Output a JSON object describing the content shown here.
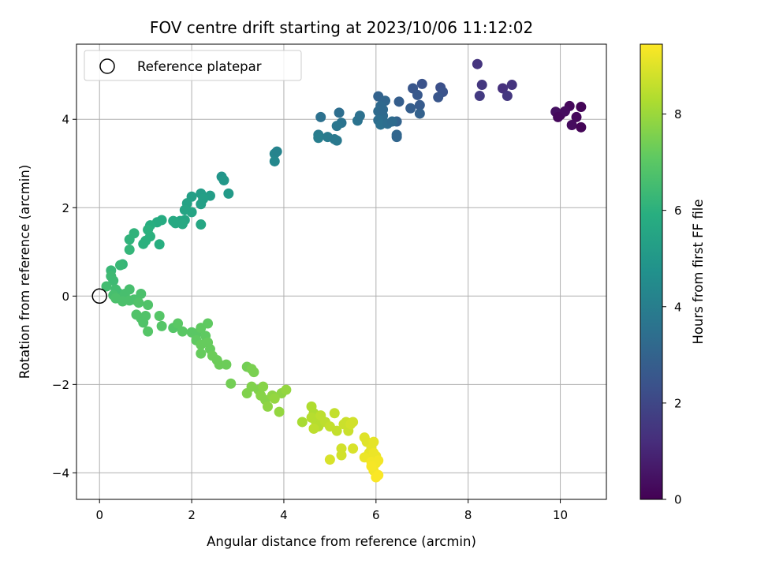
{
  "chart_data": {
    "type": "scatter",
    "title": "FOV centre drift starting at 2023/10/06 11:12:02",
    "xlabel": "Angular distance from reference (arcmin)",
    "ylabel": "Rotation from reference (arcmin)",
    "xlim": [
      -0.5,
      11.0
    ],
    "ylim": [
      -4.6,
      5.7
    ],
    "xticks": [
      0,
      2,
      4,
      6,
      8,
      10
    ],
    "yticks": [
      -4,
      -2,
      0,
      2,
      4
    ],
    "grid": true,
    "legend": {
      "placement": "top-left",
      "entries": [
        "Reference platepar"
      ]
    },
    "reference_point": {
      "x": 0,
      "y": 0,
      "marker": "open-circle",
      "label": "Reference platepar"
    },
    "colormap": "viridis",
    "colorbar": {
      "label": "Hours from first FF file",
      "range": [
        0,
        9.45
      ],
      "ticks": [
        0,
        2,
        4,
        6,
        8
      ]
    },
    "points": [
      {
        "x": 10.0,
        "y": 4.1,
        "c": 0.1
      },
      {
        "x": 10.2,
        "y": 4.3,
        "c": 0.2
      },
      {
        "x": 10.45,
        "y": 4.28,
        "c": 0.1
      },
      {
        "x": 10.35,
        "y": 4.05,
        "c": 0.2
      },
      {
        "x": 10.25,
        "y": 3.87,
        "c": 0.3
      },
      {
        "x": 10.45,
        "y": 3.82,
        "c": 0.1
      },
      {
        "x": 9.9,
        "y": 4.17,
        "c": 0.4
      },
      {
        "x": 10.1,
        "y": 4.18,
        "c": 0.3
      },
      {
        "x": 9.95,
        "y": 4.05,
        "c": 0.2
      },
      {
        "x": 8.2,
        "y": 5.25,
        "c": 1.4
      },
      {
        "x": 8.3,
        "y": 4.78,
        "c": 1.5
      },
      {
        "x": 8.25,
        "y": 4.53,
        "c": 1.6
      },
      {
        "x": 8.75,
        "y": 4.7,
        "c": 1.3
      },
      {
        "x": 8.95,
        "y": 4.78,
        "c": 1.4
      },
      {
        "x": 8.85,
        "y": 4.53,
        "c": 1.5
      },
      {
        "x": 6.8,
        "y": 4.7,
        "c": 2.5
      },
      {
        "x": 7.0,
        "y": 4.8,
        "c": 2.4
      },
      {
        "x": 6.9,
        "y": 4.55,
        "c": 2.6
      },
      {
        "x": 6.95,
        "y": 4.32,
        "c": 2.7
      },
      {
        "x": 6.75,
        "y": 4.25,
        "c": 2.8
      },
      {
        "x": 6.95,
        "y": 4.13,
        "c": 2.9
      },
      {
        "x": 7.4,
        "y": 4.72,
        "c": 2.3
      },
      {
        "x": 7.45,
        "y": 4.62,
        "c": 2.4
      },
      {
        "x": 7.35,
        "y": 4.5,
        "c": 2.5
      },
      {
        "x": 6.5,
        "y": 4.4,
        "c": 2.8
      },
      {
        "x": 6.45,
        "y": 3.95,
        "c": 3.0
      },
      {
        "x": 6.45,
        "y": 3.6,
        "c": 3.1
      },
      {
        "x": 6.45,
        "y": 3.65,
        "c": 3.1
      },
      {
        "x": 6.05,
        "y": 4.52,
        "c": 3.0
      },
      {
        "x": 6.2,
        "y": 4.42,
        "c": 3.1
      },
      {
        "x": 6.1,
        "y": 4.3,
        "c": 3.2
      },
      {
        "x": 6.05,
        "y": 4.18,
        "c": 3.3
      },
      {
        "x": 6.15,
        "y": 4.08,
        "c": 3.3
      },
      {
        "x": 6.05,
        "y": 3.98,
        "c": 3.4
      },
      {
        "x": 6.1,
        "y": 3.88,
        "c": 3.5
      },
      {
        "x": 6.25,
        "y": 3.9,
        "c": 3.4
      },
      {
        "x": 6.35,
        "y": 3.95,
        "c": 3.3
      },
      {
        "x": 6.15,
        "y": 4.22,
        "c": 3.2
      },
      {
        "x": 4.8,
        "y": 4.05,
        "c": 3.5
      },
      {
        "x": 5.2,
        "y": 4.15,
        "c": 3.4
      },
      {
        "x": 5.25,
        "y": 3.92,
        "c": 3.6
      },
      {
        "x": 5.15,
        "y": 3.85,
        "c": 3.7
      },
      {
        "x": 5.6,
        "y": 3.97,
        "c": 3.6
      },
      {
        "x": 5.65,
        "y": 4.08,
        "c": 3.5
      },
      {
        "x": 4.75,
        "y": 3.65,
        "c": 3.9
      },
      {
        "x": 4.75,
        "y": 3.58,
        "c": 4.0
      },
      {
        "x": 4.95,
        "y": 3.6,
        "c": 3.9
      },
      {
        "x": 5.1,
        "y": 3.55,
        "c": 3.8
      },
      {
        "x": 5.15,
        "y": 3.52,
        "c": 3.8
      },
      {
        "x": 3.8,
        "y": 3.22,
        "c": 4.3
      },
      {
        "x": 3.85,
        "y": 3.27,
        "c": 4.2
      },
      {
        "x": 3.8,
        "y": 3.05,
        "c": 4.4
      },
      {
        "x": 2.65,
        "y": 2.7,
        "c": 4.9
      },
      {
        "x": 2.7,
        "y": 2.62,
        "c": 5.0
      },
      {
        "x": 2.8,
        "y": 2.32,
        "c": 5.1
      },
      {
        "x": 2.4,
        "y": 2.27,
        "c": 5.2
      },
      {
        "x": 2.2,
        "y": 2.32,
        "c": 5.2
      },
      {
        "x": 2.25,
        "y": 2.2,
        "c": 5.3
      },
      {
        "x": 2.2,
        "y": 2.08,
        "c": 5.3
      },
      {
        "x": 2.0,
        "y": 2.25,
        "c": 5.3
      },
      {
        "x": 1.9,
        "y": 2.1,
        "c": 5.4
      },
      {
        "x": 1.85,
        "y": 1.95,
        "c": 5.5
      },
      {
        "x": 2.0,
        "y": 1.9,
        "c": 5.5
      },
      {
        "x": 1.75,
        "y": 1.7,
        "c": 5.6
      },
      {
        "x": 1.85,
        "y": 1.72,
        "c": 5.6
      },
      {
        "x": 1.65,
        "y": 1.65,
        "c": 5.7
      },
      {
        "x": 1.8,
        "y": 1.63,
        "c": 5.7
      },
      {
        "x": 2.2,
        "y": 1.62,
        "c": 5.6
      },
      {
        "x": 1.6,
        "y": 1.7,
        "c": 5.7
      },
      {
        "x": 1.35,
        "y": 1.72,
        "c": 5.8
      },
      {
        "x": 1.25,
        "y": 1.67,
        "c": 5.8
      },
      {
        "x": 1.3,
        "y": 1.17,
        "c": 5.9
      },
      {
        "x": 1.1,
        "y": 1.6,
        "c": 5.9
      },
      {
        "x": 1.05,
        "y": 1.5,
        "c": 6.0
      },
      {
        "x": 1.1,
        "y": 1.35,
        "c": 6.0
      },
      {
        "x": 0.95,
        "y": 1.18,
        "c": 6.0
      },
      {
        "x": 1.0,
        "y": 1.25,
        "c": 6.0
      },
      {
        "x": 0.75,
        "y": 1.42,
        "c": 6.1
      },
      {
        "x": 0.65,
        "y": 1.28,
        "c": 6.1
      },
      {
        "x": 0.65,
        "y": 1.05,
        "c": 6.2
      },
      {
        "x": 0.5,
        "y": 0.72,
        "c": 6.2
      },
      {
        "x": 0.45,
        "y": 0.7,
        "c": 6.3
      },
      {
        "x": 0.25,
        "y": 0.58,
        "c": 6.3
      },
      {
        "x": 0.25,
        "y": 0.45,
        "c": 6.4
      },
      {
        "x": 0.3,
        "y": 0.35,
        "c": 6.4
      },
      {
        "x": 0.15,
        "y": 0.22,
        "c": 6.5
      },
      {
        "x": 0.35,
        "y": 0.15,
        "c": 6.5
      },
      {
        "x": 0.4,
        "y": 0.08,
        "c": 6.5
      },
      {
        "x": 0.3,
        "y": 0.02,
        "c": 6.6
      },
      {
        "x": 0.45,
        "y": -0.05,
        "c": 6.6
      },
      {
        "x": 0.55,
        "y": 0.05,
        "c": 6.6
      },
      {
        "x": 0.65,
        "y": 0.15,
        "c": 6.6
      },
      {
        "x": 0.65,
        "y": -0.1,
        "c": 6.7
      },
      {
        "x": 0.5,
        "y": -0.12,
        "c": 6.7
      },
      {
        "x": 0.35,
        "y": -0.05,
        "c": 6.7
      },
      {
        "x": 0.75,
        "y": -0.08,
        "c": 6.7
      },
      {
        "x": 0.9,
        "y": 0.05,
        "c": 6.7
      },
      {
        "x": 0.85,
        "y": -0.15,
        "c": 6.8
      },
      {
        "x": 1.05,
        "y": -0.2,
        "c": 6.8
      },
      {
        "x": 0.8,
        "y": -0.42,
        "c": 6.8
      },
      {
        "x": 0.9,
        "y": -0.5,
        "c": 6.8
      },
      {
        "x": 1.0,
        "y": -0.45,
        "c": 6.8
      },
      {
        "x": 0.95,
        "y": -0.6,
        "c": 6.8
      },
      {
        "x": 1.05,
        "y": -0.8,
        "c": 6.9
      },
      {
        "x": 1.3,
        "y": -0.45,
        "c": 6.9
      },
      {
        "x": 1.35,
        "y": -0.68,
        "c": 6.9
      },
      {
        "x": 1.6,
        "y": -0.72,
        "c": 6.9
      },
      {
        "x": 1.7,
        "y": -0.62,
        "c": 7.0
      },
      {
        "x": 1.8,
        "y": -0.8,
        "c": 7.0
      },
      {
        "x": 2.0,
        "y": -0.82,
        "c": 7.0
      },
      {
        "x": 2.1,
        "y": -0.85,
        "c": 7.0
      },
      {
        "x": 2.2,
        "y": -0.72,
        "c": 7.1
      },
      {
        "x": 2.35,
        "y": -0.62,
        "c": 7.1
      },
      {
        "x": 2.3,
        "y": -0.9,
        "c": 7.1
      },
      {
        "x": 2.1,
        "y": -1.0,
        "c": 7.1
      },
      {
        "x": 2.2,
        "y": -1.1,
        "c": 7.2
      },
      {
        "x": 2.35,
        "y": -1.05,
        "c": 7.2
      },
      {
        "x": 2.2,
        "y": -1.3,
        "c": 7.2
      },
      {
        "x": 2.4,
        "y": -1.2,
        "c": 7.2
      },
      {
        "x": 2.45,
        "y": -1.35,
        "c": 7.3
      },
      {
        "x": 2.55,
        "y": -1.45,
        "c": 7.3
      },
      {
        "x": 2.6,
        "y": -1.55,
        "c": 7.3
      },
      {
        "x": 2.75,
        "y": -1.55,
        "c": 7.3
      },
      {
        "x": 2.85,
        "y": -1.98,
        "c": 7.4
      },
      {
        "x": 3.2,
        "y": -1.6,
        "c": 7.4
      },
      {
        "x": 3.35,
        "y": -1.72,
        "c": 7.5
      },
      {
        "x": 3.3,
        "y": -1.65,
        "c": 7.5
      },
      {
        "x": 3.3,
        "y": -2.05,
        "c": 7.6
      },
      {
        "x": 3.2,
        "y": -2.2,
        "c": 7.6
      },
      {
        "x": 3.45,
        "y": -2.12,
        "c": 7.6
      },
      {
        "x": 3.5,
        "y": -2.25,
        "c": 7.7
      },
      {
        "x": 3.55,
        "y": -2.05,
        "c": 7.7
      },
      {
        "x": 3.6,
        "y": -2.35,
        "c": 7.7
      },
      {
        "x": 3.65,
        "y": -2.5,
        "c": 7.8
      },
      {
        "x": 3.75,
        "y": -2.25,
        "c": 7.8
      },
      {
        "x": 3.95,
        "y": -2.2,
        "c": 7.8
      },
      {
        "x": 4.05,
        "y": -2.12,
        "c": 7.9
      },
      {
        "x": 3.9,
        "y": -2.62,
        "c": 7.9
      },
      {
        "x": 3.8,
        "y": -2.32,
        "c": 7.9
      },
      {
        "x": 4.4,
        "y": -2.85,
        "c": 8.2
      },
      {
        "x": 4.6,
        "y": -2.5,
        "c": 8.3
      },
      {
        "x": 4.65,
        "y": -2.65,
        "c": 8.3
      },
      {
        "x": 4.6,
        "y": -2.75,
        "c": 8.4
      },
      {
        "x": 4.7,
        "y": -2.85,
        "c": 8.4
      },
      {
        "x": 4.75,
        "y": -2.95,
        "c": 8.4
      },
      {
        "x": 4.8,
        "y": -2.7,
        "c": 8.5
      },
      {
        "x": 4.65,
        "y": -3.0,
        "c": 8.5
      },
      {
        "x": 4.9,
        "y": -2.85,
        "c": 8.5
      },
      {
        "x": 5.0,
        "y": -2.95,
        "c": 8.6
      },
      {
        "x": 5.1,
        "y": -2.65,
        "c": 8.6
      },
      {
        "x": 5.15,
        "y": -3.05,
        "c": 8.6
      },
      {
        "x": 5.3,
        "y": -2.9,
        "c": 8.7
      },
      {
        "x": 5.35,
        "y": -2.85,
        "c": 8.7
      },
      {
        "x": 5.4,
        "y": -3.05,
        "c": 8.7
      },
      {
        "x": 5.45,
        "y": -2.9,
        "c": 8.8
      },
      {
        "x": 5.5,
        "y": -2.85,
        "c": 8.8
      },
      {
        "x": 5.25,
        "y": -3.45,
        "c": 8.8
      },
      {
        "x": 5.25,
        "y": -3.6,
        "c": 8.8
      },
      {
        "x": 5.0,
        "y": -3.7,
        "c": 8.9
      },
      {
        "x": 5.5,
        "y": -3.45,
        "c": 8.9
      },
      {
        "x": 5.75,
        "y": -3.2,
        "c": 9.0
      },
      {
        "x": 5.8,
        "y": -3.3,
        "c": 9.0
      },
      {
        "x": 5.95,
        "y": -3.3,
        "c": 9.1
      },
      {
        "x": 5.9,
        "y": -3.45,
        "c": 9.1
      },
      {
        "x": 5.85,
        "y": -3.55,
        "c": 9.1
      },
      {
        "x": 5.95,
        "y": -3.55,
        "c": 9.2
      },
      {
        "x": 6.0,
        "y": -3.62,
        "c": 9.2
      },
      {
        "x": 5.75,
        "y": -3.65,
        "c": 9.2
      },
      {
        "x": 5.9,
        "y": -3.75,
        "c": 9.3
      },
      {
        "x": 6.0,
        "y": -3.78,
        "c": 9.3
      },
      {
        "x": 6.05,
        "y": -3.72,
        "c": 9.3
      },
      {
        "x": 5.95,
        "y": -3.95,
        "c": 9.3
      },
      {
        "x": 6.0,
        "y": -4.1,
        "c": 9.4
      },
      {
        "x": 6.05,
        "y": -4.05,
        "c": 9.4
      },
      {
        "x": 5.9,
        "y": -3.85,
        "c": 9.35
      }
    ]
  }
}
